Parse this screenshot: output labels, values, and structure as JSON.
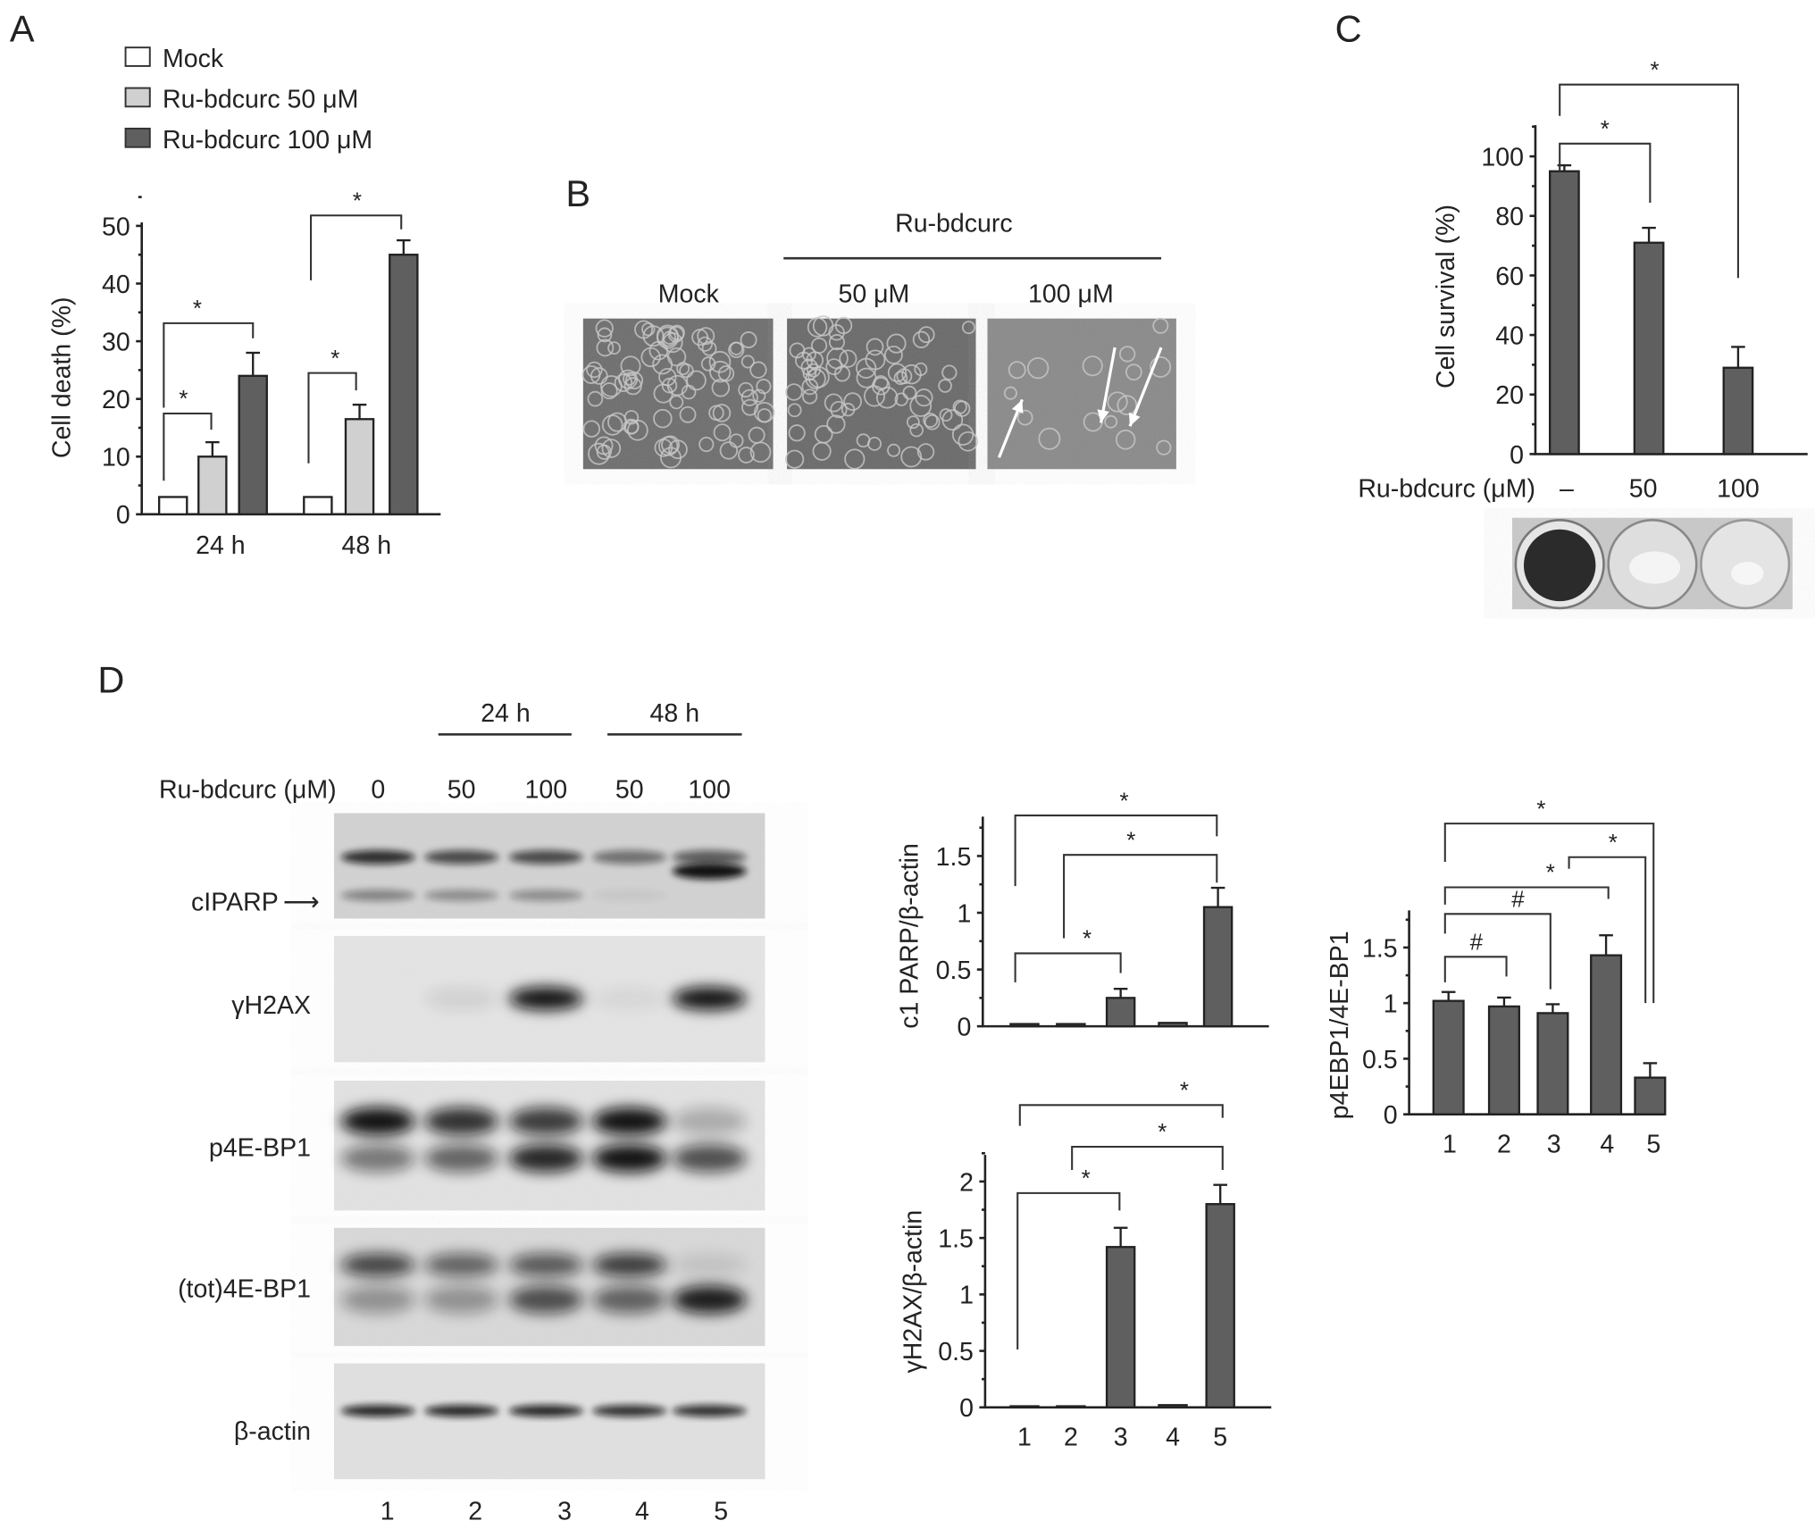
{
  "panels": {
    "A": {
      "letter": "A"
    },
    "B": {
      "letter": "B",
      "header": "Ru-bdcurc",
      "columns": [
        "Mock",
        "50 μM",
        "100 μM"
      ]
    },
    "C": {
      "letter": "C",
      "plate_row_label": "Ru-bdcurc (μM)"
    },
    "D": {
      "letter": "D",
      "time_headers": [
        "24 h",
        "48 h"
      ],
      "dose_label": "Ru-bdcurc (μM)",
      "doses": [
        "0",
        "50",
        "100",
        "50",
        "100"
      ],
      "blot_rows": [
        "cIPARP",
        "γH2AX",
        "p4E-BP1",
        "(tot)4E-BP1",
        "β-actin"
      ],
      "arrow_glyph": "⟶",
      "lanes": [
        "1",
        "2",
        "3",
        "4",
        "5"
      ]
    }
  },
  "colors": {
    "mock": "#ffffff",
    "dose50": "#d0d0d0",
    "dose100": "#5f5f5f",
    "bar": "#5f5f5f"
  },
  "chart_data": [
    {
      "id": "A",
      "type": "bar",
      "ylabel": "Cell death (%)",
      "categories": [
        "24 h",
        "48 h"
      ],
      "ylim": [
        0,
        50
      ],
      "yticks": [
        0,
        10,
        20,
        30,
        40,
        50
      ],
      "legend_position": "top-left",
      "series": [
        {
          "name": "Mock",
          "values": [
            3,
            3
          ],
          "errors": [
            0,
            0
          ],
          "color": "#ffffff"
        },
        {
          "name": "Ru-bdcurc 50 μM",
          "values": [
            10,
            16.5
          ],
          "errors": [
            2.5,
            2.5
          ],
          "color": "#d0d0d0"
        },
        {
          "name": "Ru-bdcurc 100 μM",
          "values": [
            24,
            45
          ],
          "errors": [
            4,
            2.5
          ],
          "color": "#5f5f5f"
        }
      ],
      "annotations": [
        {
          "group": "24 h",
          "from": "Mock",
          "to": "Ru-bdcurc 50 μM",
          "label": "*"
        },
        {
          "group": "24 h",
          "from": "Mock",
          "to": "Ru-bdcurc 100 μM",
          "label": "*"
        },
        {
          "group": "48 h",
          "from": "Mock",
          "to": "Ru-bdcurc 50 μM",
          "label": "*"
        },
        {
          "group": "48 h",
          "from": "Mock",
          "to": "Ru-bdcurc 100 μM",
          "label": "*"
        }
      ]
    },
    {
      "id": "C",
      "type": "bar",
      "ylabel": "Cell survival (%)",
      "xlabel": "Ru-bdcurc (μM)",
      "categories": [
        "–",
        "50",
        "100"
      ],
      "values": [
        95,
        71,
        29
      ],
      "errors": [
        2,
        5,
        7
      ],
      "ylim": [
        0,
        110
      ],
      "yticks": [
        0,
        20,
        40,
        60,
        80,
        100
      ],
      "annotations": [
        {
          "from": "–",
          "to": "50",
          "label": "*"
        },
        {
          "from": "–",
          "to": "100",
          "label": "*"
        }
      ]
    },
    {
      "id": "D-cPARP",
      "type": "bar",
      "ylabel": "c1 PARP/β-actin",
      "categories": [
        "1",
        "2",
        "3",
        "4",
        "5"
      ],
      "values": [
        0.02,
        0.02,
        0.25,
        0.03,
        1.05
      ],
      "errors": [
        0,
        0,
        0.08,
        0,
        0.17
      ],
      "ylim": [
        0,
        1.85
      ],
      "yticks": [
        0,
        0.5,
        1,
        1.5
      ],
      "annotations": [
        {
          "from": "1",
          "to": "3",
          "label": "*"
        },
        {
          "from": "2",
          "to": "5",
          "label": "*"
        },
        {
          "from": "1",
          "to": "5",
          "label": "*"
        }
      ]
    },
    {
      "id": "D-gH2AX",
      "type": "bar",
      "ylabel": "γH2AX/β-actin",
      "categories": [
        "1",
        "2",
        "3",
        "4",
        "5"
      ],
      "values": [
        0.01,
        0.01,
        1.42,
        0.02,
        1.8
      ],
      "errors": [
        0,
        0,
        0.17,
        0,
        0.17
      ],
      "ylim": [
        0,
        2.2
      ],
      "yticks": [
        0,
        0.5,
        1,
        1.5,
        2
      ],
      "annotations": [
        {
          "from": "1",
          "to": "3",
          "label": "*"
        },
        {
          "from": "2",
          "to": "5",
          "label": "*"
        },
        {
          "from": "1",
          "to": "5",
          "label": "*"
        }
      ]
    },
    {
      "id": "D-p4EBP1",
      "type": "bar",
      "ylabel": "p4EBP1/4E-BP1",
      "categories": [
        "1",
        "2",
        "3",
        "4",
        "5"
      ],
      "values": [
        1.02,
        0.97,
        0.91,
        1.43,
        0.33
      ],
      "errors": [
        0.08,
        0.08,
        0.08,
        0.18,
        0.13
      ],
      "ylim": [
        0,
        1.8
      ],
      "yticks": [
        0,
        0.5,
        1,
        1.5
      ],
      "annotations": [
        {
          "from": "1",
          "to": "2",
          "label": "#"
        },
        {
          "from": "1",
          "to": "3",
          "label": "#"
        },
        {
          "from": "1",
          "to": "4",
          "label": "*"
        },
        {
          "from": "4",
          "to": "5",
          "label": "*"
        },
        {
          "from": "1",
          "to": "5",
          "label": "*"
        }
      ]
    }
  ]
}
